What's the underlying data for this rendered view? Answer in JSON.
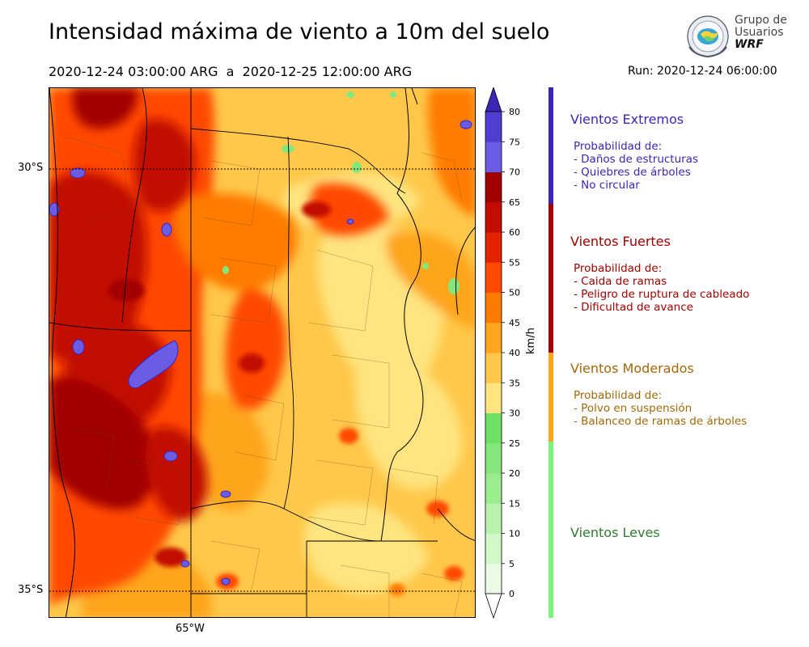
{
  "header": {
    "title": "Intensidad máxima de viento a 10m del suelo",
    "period": "2020-12-24 03:00:00 ARG  a  2020-12-25 12:00:00 ARG",
    "run": "Run: 2020-12-24 06:00:00"
  },
  "logo": {
    "line1": "Grupo de",
    "line2": "Usuarios",
    "line3": "WRF"
  },
  "axes": {
    "lat_labels": [
      "30°S",
      "35°S"
    ],
    "lon_labels": [
      "65°W"
    ]
  },
  "colorbar": {
    "unit": "km/h",
    "ticks": [
      "0",
      "5",
      "10",
      "15",
      "20",
      "25",
      "30",
      "35",
      "40",
      "45",
      "50",
      "55",
      "60",
      "65",
      "70",
      "75",
      "80"
    ],
    "colors": [
      "#eafbe6",
      "#d2f7c8",
      "#b9f2ac",
      "#9bec8e",
      "#85e67b",
      "#6ee064",
      "#ffe47f",
      "#ffc84a",
      "#ffa51e",
      "#ff7b00",
      "#ff4a00",
      "#e32300",
      "#c20d00",
      "#a10000",
      "#6b5ce6",
      "#4f3ed2",
      "#3b26b8"
    ]
  },
  "categories": [
    {
      "title": "Vientos Extremos",
      "color": "#3b26b8",
      "lines": [
        "Probabilidad de:",
        "- Daños de estructuras",
        "- Quiebres de árboles",
        "- No circular"
      ]
    },
    {
      "title": "Vientos Fuertes",
      "color": "#a10000",
      "lines": [
        "Probabilidad de:",
        "- Caida de ramas",
        "- Peligro de ruptura de cableado",
        "- Dificultad de avance"
      ]
    },
    {
      "title": "Vientos Moderados",
      "color": "#a3680a",
      "lines": [
        "Probabilidad de:",
        "- Polvo en suspensión",
        "- Balanceo de ramas de árboles"
      ]
    },
    {
      "title": "Vientos Leves",
      "color": "#2e7d2e",
      "lines": []
    }
  ],
  "category_bar_colors": [
    "#3b26b8",
    "#a10000",
    "#ffa51e",
    "#7cf27a"
  ]
}
